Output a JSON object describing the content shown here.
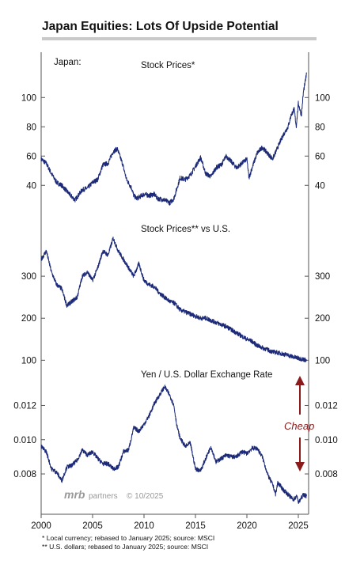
{
  "header": {
    "title": "Japan Equities: Lots Of Upside Potential"
  },
  "watermark": {
    "brand": "mrb",
    "suffix": "partners",
    "date": "© 10/2025"
  },
  "footnotes": [
    "*  Local currency; rebased to January 2025; source: MSCI",
    "** U.S. dollars; rebased to January 2025; source: MSCI"
  ],
  "colors": {
    "series": "#1c2a78",
    "accent": "#8b1a1a",
    "axis": "#555555"
  },
  "chart_data": [
    {
      "type": "line",
      "label": "Japan:",
      "title": "Stock Prices*",
      "xlim": [
        2000,
        2026
      ],
      "ylim": [
        25,
        118
      ],
      "yticks": [
        40,
        60,
        80,
        100
      ],
      "series": [
        {
          "x": [
            2000.0,
            2000.5,
            2001.0,
            2001.5,
            2002.0,
            2002.5,
            2003.0,
            2003.3,
            2004.0,
            2004.5,
            2005.0,
            2005.5,
            2006.0,
            2006.5,
            2007.0,
            2007.4,
            2007.9,
            2008.3,
            2008.8,
            2009.0,
            2009.3,
            2010.0,
            2010.5,
            2011.0,
            2011.3,
            2012.0,
            2012.5,
            2012.9,
            2013.2,
            2013.5,
            2014.0,
            2014.5,
            2015.0,
            2015.5,
            2016.0,
            2016.5,
            2017.0,
            2017.5,
            2018.0,
            2018.5,
            2019.0,
            2019.5,
            2020.0,
            2020.2,
            2020.5,
            2021.0,
            2021.5,
            2022.0,
            2022.5,
            2023.0,
            2023.5,
            2024.0,
            2024.3,
            2024.6,
            2024.8,
            2025.0,
            2025.3,
            2025.5,
            2025.8
          ],
          "y": [
            58,
            55,
            48,
            42,
            40,
            36,
            32,
            30,
            37,
            38,
            42,
            44,
            54,
            55,
            63,
            65,
            55,
            44,
            38,
            33,
            31,
            34,
            33,
            34,
            31,
            30,
            28,
            31,
            38,
            45,
            44,
            47,
            53,
            59,
            48,
            46,
            52,
            54,
            60,
            56,
            52,
            55,
            58,
            45,
            52,
            62,
            66,
            62,
            58,
            66,
            74,
            80,
            88,
            92,
            80,
            96,
            88,
            104,
            116
          ]
        }
      ]
    },
    {
      "type": "line",
      "title": "Stock Prices** vs U.S.",
      "xlim": [
        2000,
        2026
      ],
      "ylim": [
        95,
        400
      ],
      "yticks": [
        100,
        200,
        300
      ],
      "series": [
        {
          "x": [
            2000.0,
            2000.5,
            2001.0,
            2001.5,
            2002.0,
            2002.5,
            2003.0,
            2003.5,
            2004.0,
            2004.5,
            2005.0,
            2005.5,
            2006.0,
            2006.5,
            2007.0,
            2007.5,
            2008.0,
            2008.5,
            2009.0,
            2009.5,
            2010.0,
            2010.5,
            2011.0,
            2011.5,
            2012.0,
            2012.5,
            2013.0,
            2013.5,
            2014.0,
            2014.5,
            2015.0,
            2015.5,
            2016.0,
            2017.0,
            2018.0,
            2019.0,
            2020.0,
            2020.5,
            2021.0,
            2021.5,
            2022.0,
            2022.5,
            2023.0,
            2023.5,
            2024.0,
            2024.5,
            2025.0,
            2025.5,
            2025.8
          ],
          "y": [
            340,
            360,
            310,
            280,
            270,
            230,
            240,
            250,
            300,
            310,
            290,
            320,
            360,
            350,
            390,
            360,
            340,
            320,
            300,
            330,
            290,
            280,
            275,
            260,
            250,
            240,
            235,
            220,
            215,
            210,
            205,
            200,
            200,
            190,
            180,
            165,
            150,
            145,
            135,
            130,
            125,
            120,
            118,
            115,
            112,
            108,
            105,
            102,
            100
          ]
        }
      ]
    },
    {
      "type": "line",
      "title": "Yen / U.S. Dollar Exchange Rate",
      "xlim": [
        2000,
        2026
      ],
      "ylim": [
        0.0062,
        0.0135
      ],
      "yticks": [
        0.008,
        0.01,
        0.012
      ],
      "series": [
        {
          "x": [
            2000.0,
            2000.5,
            2001.0,
            2001.5,
            2002.0,
            2002.5,
            2003.0,
            2003.5,
            2004.0,
            2004.5,
            2005.0,
            2005.5,
            2006.0,
            2006.5,
            2007.0,
            2007.5,
            2008.0,
            2008.5,
            2009.0,
            2009.5,
            2010.0,
            2010.5,
            2011.0,
            2011.5,
            2012.0,
            2012.5,
            2012.9,
            2013.2,
            2013.5,
            2014.0,
            2014.5,
            2015.0,
            2015.5,
            2016.0,
            2016.5,
            2017.0,
            2017.5,
            2018.0,
            2018.5,
            2019.0,
            2019.5,
            2020.0,
            2020.5,
            2021.0,
            2021.5,
            2022.0,
            2022.3,
            2022.5,
            2022.8,
            2023.0,
            2023.5,
            2024.0,
            2024.5,
            2024.9,
            2025.0,
            2025.5,
            2025.8
          ],
          "y": [
            0.0096,
            0.0093,
            0.0083,
            0.0081,
            0.0076,
            0.0084,
            0.0085,
            0.0088,
            0.0094,
            0.0091,
            0.0093,
            0.0089,
            0.0086,
            0.0086,
            0.0083,
            0.0084,
            0.0093,
            0.0094,
            0.0107,
            0.0105,
            0.0109,
            0.0114,
            0.0121,
            0.0126,
            0.0131,
            0.0126,
            0.012,
            0.0108,
            0.0101,
            0.0096,
            0.0098,
            0.0083,
            0.0082,
            0.0089,
            0.0096,
            0.0087,
            0.0089,
            0.0091,
            0.009,
            0.009,
            0.0093,
            0.0092,
            0.0095,
            0.0095,
            0.009,
            0.008,
            0.0076,
            0.0074,
            0.0068,
            0.0075,
            0.0071,
            0.0068,
            0.0065,
            0.0067,
            0.0063,
            0.0068,
            0.0067
          ]
        }
      ]
    }
  ],
  "x_axis": {
    "ticks": [
      "2000",
      "2005",
      "2010",
      "2015",
      "2020",
      "2025"
    ]
  },
  "annotation": {
    "text": "Cheap"
  }
}
